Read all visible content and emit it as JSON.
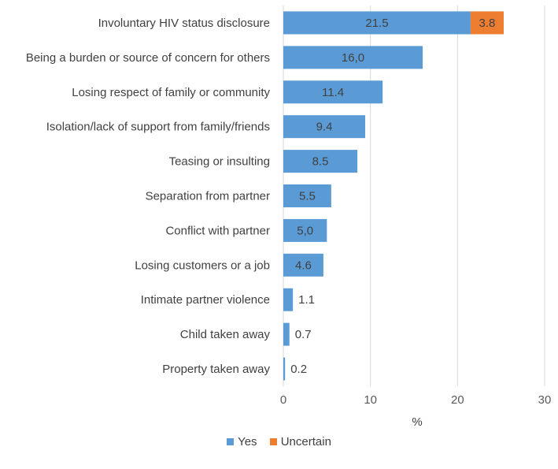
{
  "chart_data": {
    "type": "bar",
    "orientation": "horizontal",
    "stacked": true,
    "categories": [
      "Involuntary HIV status disclosure",
      "Being a burden or source of concern for others",
      "Losing respect of family or community",
      "Isolation/lack of support from family/friends",
      "Teasing or insulting",
      "Separation from partner",
      "Conflict with partner",
      "Losing customers or a job",
      "Intimate partner violence",
      "Child taken away",
      "Property taken away"
    ],
    "series": [
      {
        "name": "Yes",
        "color": "#5b9bd5",
        "values": [
          21.5,
          16.0,
          11.4,
          9.4,
          8.5,
          5.5,
          5.0,
          4.6,
          1.1,
          0.7,
          0.2
        ],
        "labels": [
          "21.5",
          "16,0",
          "11.4",
          "9.4",
          "8.5",
          "5.5",
          "5,0",
          "4.6",
          "1.1",
          "0.7",
          "0.2"
        ]
      },
      {
        "name": "Uncertain",
        "color": "#ed7d31",
        "values": [
          3.8,
          null,
          null,
          null,
          null,
          null,
          null,
          null,
          null,
          null,
          null
        ],
        "labels": [
          "3.8",
          "",
          "",
          "",
          "",
          "",
          "",
          "",
          "",
          "",
          ""
        ]
      }
    ],
    "xlabel": "%",
    "xlim": [
      0,
      30
    ],
    "xticks": [
      "0",
      "10",
      "20",
      "30"
    ],
    "grid": true,
    "legend_position": "bottom"
  }
}
